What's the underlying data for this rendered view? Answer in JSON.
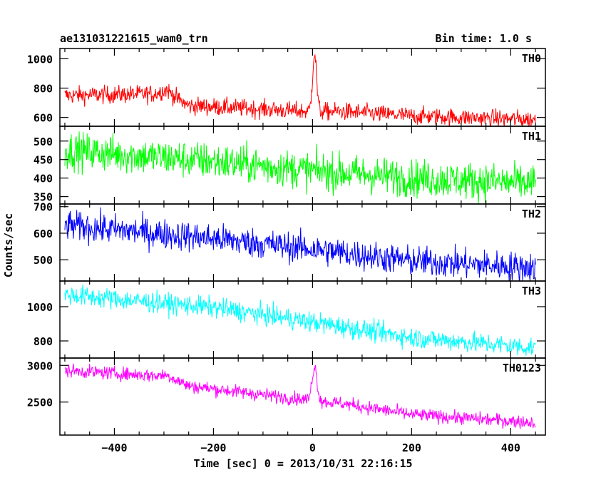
{
  "chart_data": {
    "type": "line",
    "title_left": "ae131031221615_wam0_trn",
    "title_right": "Bin time: 1.0 s",
    "xlabel": "Time [sec] 0 = 2013/10/31 22:16:15",
    "ylabel": "Counts/sec",
    "xlim": [
      -510,
      470
    ],
    "xticks": [
      -400,
      -200,
      0,
      200,
      400
    ],
    "x_start": -500,
    "x_end": 450,
    "bin_time": 1.0,
    "panels": [
      {
        "name": "TH0",
        "color": "#ff0000",
        "ylim": [
          540,
          1070
        ],
        "yticks": [
          600,
          800,
          1000
        ],
        "noise": 30,
        "trend": [
          [
            -500,
            750
          ],
          [
            -320,
            760
          ],
          [
            -295,
            790
          ],
          [
            -270,
            720
          ],
          [
            -250,
            680
          ],
          [
            -150,
            665
          ],
          [
            -10,
            640
          ],
          [
            60,
            640
          ],
          [
            200,
            610
          ],
          [
            450,
            585
          ]
        ],
        "features": [
          {
            "x": 4,
            "peak": 1040,
            "width": 4
          }
        ]
      },
      {
        "name": "TH1",
        "color": "#00ff00",
        "ylim": [
          330,
          540
        ],
        "yticks": [
          350,
          400,
          450,
          500
        ],
        "noise": 25,
        "trend": [
          [
            -500,
            475
          ],
          [
            -200,
            445
          ],
          [
            0,
            420
          ],
          [
            200,
            400
          ],
          [
            450,
            385
          ]
        ],
        "features": []
      },
      {
        "name": "TH2",
        "color": "#0000ff",
        "ylim": [
          420,
          710
        ],
        "yticks": [
          500,
          600,
          700
        ],
        "noise": 28,
        "trend": [
          [
            -500,
            630
          ],
          [
            -200,
            580
          ],
          [
            0,
            540
          ],
          [
            200,
            495
          ],
          [
            450,
            470
          ]
        ],
        "features": []
      },
      {
        "name": "TH3",
        "color": "#00ffff",
        "ylim": [
          700,
          1150
        ],
        "yticks": [
          800,
          1000
        ],
        "noise": 30,
        "trend": [
          [
            -500,
            1070
          ],
          [
            -200,
            995
          ],
          [
            0,
            910
          ],
          [
            200,
            820
          ],
          [
            450,
            760
          ]
        ],
        "features": []
      },
      {
        "name": "TH0123",
        "color": "#ff00ff",
        "ylim": [
          2050,
          3100
        ],
        "yticks": [
          2500,
          3000
        ],
        "noise": 45,
        "trend": [
          [
            -500,
            2930
          ],
          [
            -320,
            2860
          ],
          [
            -295,
            2870
          ],
          [
            -250,
            2720
          ],
          [
            -150,
            2640
          ],
          [
            -10,
            2530
          ],
          [
            60,
            2480
          ],
          [
            200,
            2330
          ],
          [
            450,
            2220
          ]
        ],
        "features": [
          {
            "x": 4,
            "peak": 2980,
            "width": 5
          }
        ]
      }
    ]
  }
}
